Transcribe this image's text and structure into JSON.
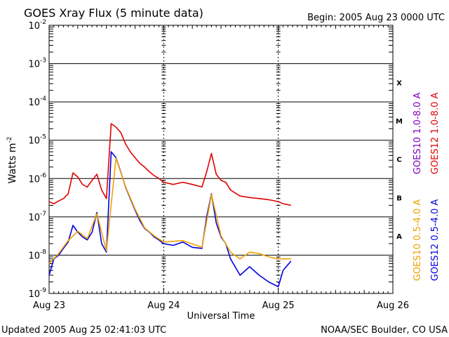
{
  "chart_data": {
    "type": "line",
    "title": "GOES Xray Flux (5 minute data)",
    "begin_label": "Begin:  2005 Aug 23 0000 UTC",
    "xlabel": "Universal Time",
    "ylabel": "Watts m",
    "ylabel_sup": "-2",
    "y_scale": "log",
    "ylim": [
      1e-09,
      0.01
    ],
    "y_ticks": [
      {
        "value": 0.01,
        "base": "10",
        "exp": "-2"
      },
      {
        "value": 0.001,
        "base": "10",
        "exp": "-3"
      },
      {
        "value": 0.0001,
        "base": "10",
        "exp": "-4"
      },
      {
        "value": 1e-05,
        "base": "10",
        "exp": "-5"
      },
      {
        "value": 1e-06,
        "base": "10",
        "exp": "-6"
      },
      {
        "value": 1e-07,
        "base": "10",
        "exp": "-7"
      },
      {
        "value": 1e-08,
        "base": "10",
        "exp": "-8"
      },
      {
        "value": 1e-09,
        "base": "10",
        "exp": "-9"
      }
    ],
    "xlim": [
      "2005-08-23T00:00",
      "2005-08-26T00:00"
    ],
    "x_ticks": [
      {
        "value": "2005-08-23T00:00",
        "label": "Aug 23"
      },
      {
        "value": "2005-08-24T00:00",
        "label": "Aug 24"
      },
      {
        "value": "2005-08-25T00:00",
        "label": "Aug 25"
      },
      {
        "value": "2005-08-26T00:00",
        "label": "Aug 26"
      }
    ],
    "flare_classes": [
      {
        "label": "X",
        "value": 0.00032
      },
      {
        "label": "M",
        "value": 3.2e-05
      },
      {
        "label": "C",
        "value": 3.2e-06
      },
      {
        "label": "B",
        "value": 3.2e-07
      },
      {
        "label": "A",
        "value": 3.2e-08
      }
    ],
    "legend_placement": "right",
    "series": [
      {
        "name": "GOES12 1.0-8.0 A",
        "color": "#e00000",
        "x": [
          "2005-08-23T00:00",
          "2005-08-23T01:00",
          "2005-08-23T02:00",
          "2005-08-23T03:00",
          "2005-08-23T04:00",
          "2005-08-23T05:00",
          "2005-08-23T06:00",
          "2005-08-23T07:00",
          "2005-08-23T08:00",
          "2005-08-23T09:00",
          "2005-08-23T10:00",
          "2005-08-23T11:00",
          "2005-08-23T12:00",
          "2005-08-23T13:00",
          "2005-08-23T14:00",
          "2005-08-23T15:00",
          "2005-08-23T16:00",
          "2005-08-23T17:00",
          "2005-08-23T18:00",
          "2005-08-23T19:00",
          "2005-08-23T20:00",
          "2005-08-23T21:00",
          "2005-08-23T22:00",
          "2005-08-23T23:00",
          "2005-08-24T00:00",
          "2005-08-24T02:00",
          "2005-08-24T04:00",
          "2005-08-24T06:00",
          "2005-08-24T08:00",
          "2005-08-24T09:00",
          "2005-08-24T10:00",
          "2005-08-24T11:00",
          "2005-08-24T12:00",
          "2005-08-24T13:00",
          "2005-08-24T14:00",
          "2005-08-24T16:00",
          "2005-08-24T18:00",
          "2005-08-24T20:00",
          "2005-08-24T22:00",
          "2005-08-25T00:00",
          "2005-08-25T01:00",
          "2005-08-25T02:40"
        ],
        "values": [
          2.5e-07,
          2.2e-07,
          2.6e-07,
          3e-07,
          4e-07,
          1.4e-06,
          1.1e-06,
          7e-07,
          6e-07,
          9e-07,
          1.3e-06,
          5e-07,
          3e-07,
          2.7e-05,
          2.2e-05,
          1.6e-05,
          8e-06,
          5e-06,
          3.5e-06,
          2.5e-06,
          2e-06,
          1.5e-06,
          1.2e-06,
          1e-06,
          8e-07,
          7e-07,
          8e-07,
          7e-07,
          6e-07,
          1.5e-06,
          4.5e-06,
          1.3e-06,
          9e-07,
          8e-07,
          5e-07,
          3.5e-07,
          3.2e-07,
          3e-07,
          2.8e-07,
          2.5e-07,
          2.2e-07,
          2e-07
        ]
      },
      {
        "name": "GOES10 1.0-8.0 A",
        "color": "#8000c0",
        "x": [],
        "values": []
      },
      {
        "name": "GOES12 0.5-4.0 A",
        "color": "#0000e0",
        "x": [
          "2005-08-23T00:00",
          "2005-08-23T01:00",
          "2005-08-23T02:00",
          "2005-08-23T03:00",
          "2005-08-23T04:00",
          "2005-08-23T05:00",
          "2005-08-23T06:00",
          "2005-08-23T07:00",
          "2005-08-23T08:00",
          "2005-08-23T09:00",
          "2005-08-23T10:00",
          "2005-08-23T11:00",
          "2005-08-23T12:00",
          "2005-08-23T13:00",
          "2005-08-23T14:00",
          "2005-08-23T15:00",
          "2005-08-23T16:00",
          "2005-08-23T17:00",
          "2005-08-23T18:00",
          "2005-08-23T19:00",
          "2005-08-23T20:00",
          "2005-08-23T21:00",
          "2005-08-23T22:00",
          "2005-08-23T23:00",
          "2005-08-24T00:00",
          "2005-08-24T02:00",
          "2005-08-24T04:00",
          "2005-08-24T06:00",
          "2005-08-24T08:00",
          "2005-08-24T09:00",
          "2005-08-24T10:00",
          "2005-08-24T11:00",
          "2005-08-24T12:00",
          "2005-08-24T13:00",
          "2005-08-24T14:00",
          "2005-08-24T16:00",
          "2005-08-24T18:00",
          "2005-08-24T20:00",
          "2005-08-24T22:00",
          "2005-08-25T00:00",
          "2005-08-25T01:00",
          "2005-08-25T02:40"
        ],
        "values": [
          3e-09,
          8e-09,
          1e-08,
          1.5e-08,
          2.2e-08,
          6e-08,
          4e-08,
          3e-08,
          2.5e-08,
          4e-08,
          1.3e-07,
          2e-08,
          1.2e-08,
          5e-06,
          3.5e-06,
          1.5e-06,
          6e-07,
          3e-07,
          1.5e-07,
          8e-08,
          5e-08,
          4e-08,
          3e-08,
          2.5e-08,
          2e-08,
          1.8e-08,
          2.2e-08,
          1.6e-08,
          1.5e-08,
          1e-07,
          4e-07,
          7e-08,
          3e-08,
          2e-08,
          8e-09,
          3e-09,
          5e-09,
          3e-09,
          2e-09,
          1.5e-09,
          4e-09,
          7e-09
        ]
      },
      {
        "name": "GOES10 0.5-4.0 A",
        "color": "#f0a000",
        "x": [
          "2005-08-23T00:00",
          "2005-08-23T02:00",
          "2005-08-23T04:00",
          "2005-08-23T06:00",
          "2005-08-23T08:00",
          "2005-08-23T10:00",
          "2005-08-23T12:00",
          "2005-08-23T14:00",
          "2005-08-23T16:00",
          "2005-08-23T18:00",
          "2005-08-23T20:00",
          "2005-08-23T22:00",
          "2005-08-24T00:00",
          "2005-08-24T04:00",
          "2005-08-24T08:00",
          "2005-08-24T10:00",
          "2005-08-24T12:00",
          "2005-08-24T14:00",
          "2005-08-24T16:00",
          "2005-08-24T18:00",
          "2005-08-24T20:00",
          "2005-08-24T22:00",
          "2005-08-25T00:00",
          "2005-08-25T02:40"
        ],
        "values": [
          6e-09,
          1.1e-08,
          2.4e-08,
          4.2e-08,
          2.7e-08,
          1.2e-07,
          1.3e-08,
          3.4e-06,
          6.2e-07,
          1.6e-07,
          5.2e-08,
          3.2e-08,
          2.2e-08,
          2.4e-08,
          1.6e-08,
          3.8e-07,
          3.2e-08,
          1.2e-08,
          8e-09,
          1.2e-08,
          1.1e-08,
          9e-09,
          8e-09,
          8e-09
        ]
      }
    ]
  },
  "footer": {
    "updated": "Updated 2005 Aug 25 02:41:03 UTC",
    "credit": "NOAA/SEC Boulder, CO USA"
  }
}
